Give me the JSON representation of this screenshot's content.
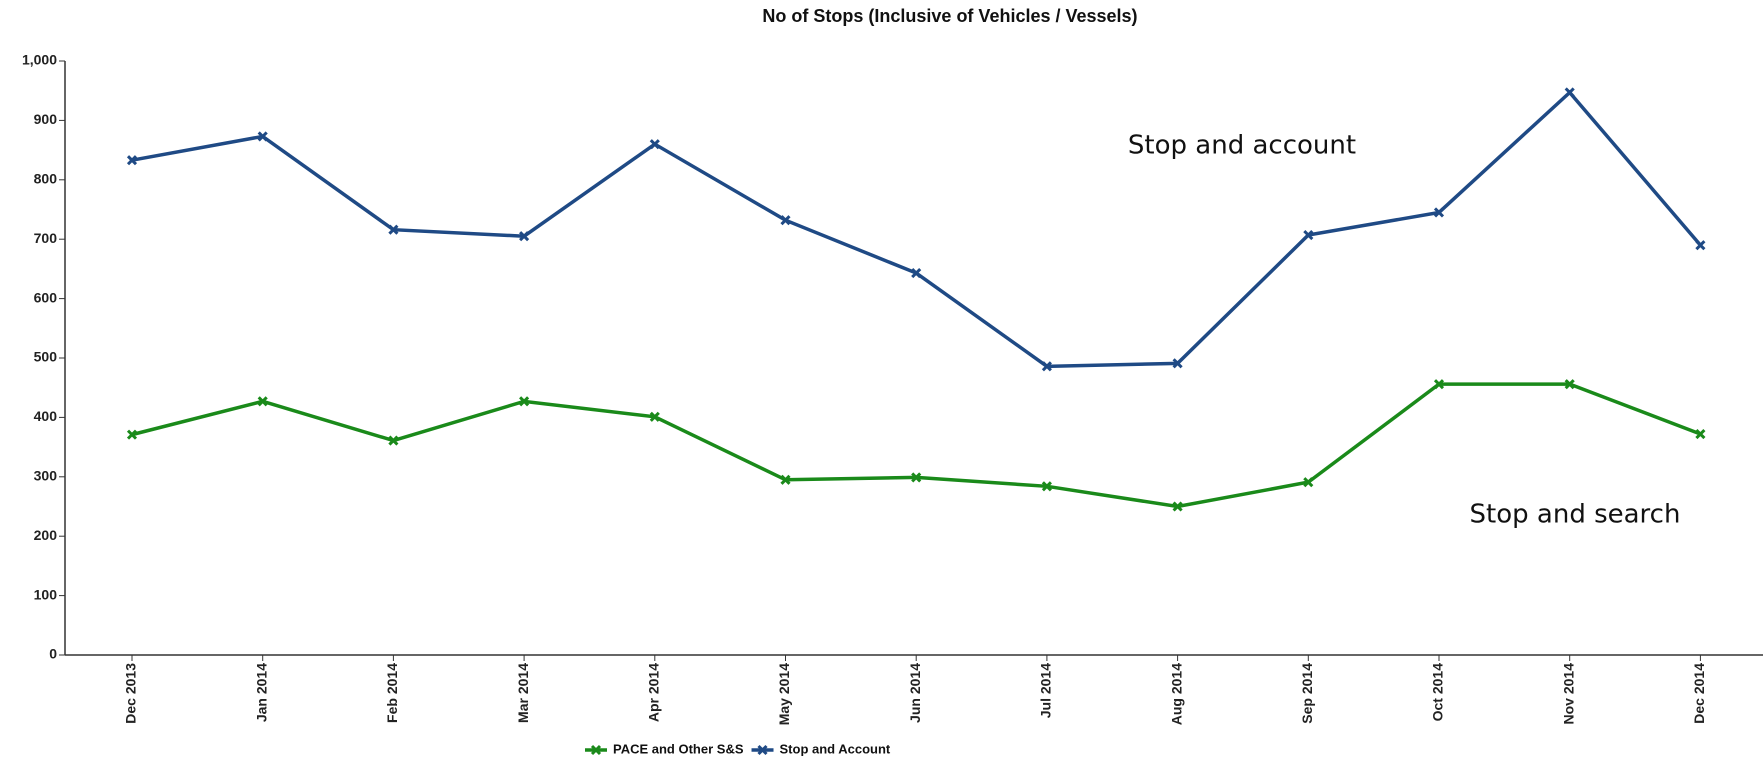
{
  "chart_data": {
    "type": "line",
    "title": "No of Stops (Inclusive of Vehicles / Vessels)",
    "categories": [
      "Dec 2013",
      "Jan 2014",
      "Feb 2014",
      "Mar 2014",
      "Apr 2014",
      "May 2014",
      "Jun 2014",
      "Jul 2014",
      "Aug 2014",
      "Sep 2014",
      "Oct 2014",
      "Nov 2014",
      "Dec 2014"
    ],
    "series": [
      {
        "name": "PACE and Other S&S",
        "color": "#1a8a1a",
        "values": [
          371,
          427,
          361,
          427,
          401,
          295,
          299,
          284,
          250,
          291,
          456,
          456,
          372
        ]
      },
      {
        "name": "Stop and Account",
        "color": "#1f4a85",
        "values": [
          833,
          873,
          716,
          705,
          860,
          732,
          643,
          486,
          491,
          707,
          745,
          947,
          690
        ]
      }
    ],
    "ylim": [
      0,
      1000
    ],
    "yticks": [
      0,
      100,
      200,
      300,
      400,
      500,
      600,
      700,
      800,
      900,
      {
        "value": 1000,
        "label": "1,000"
      }
    ],
    "annotations": [
      "Stop and account",
      "Stop and search"
    ]
  }
}
